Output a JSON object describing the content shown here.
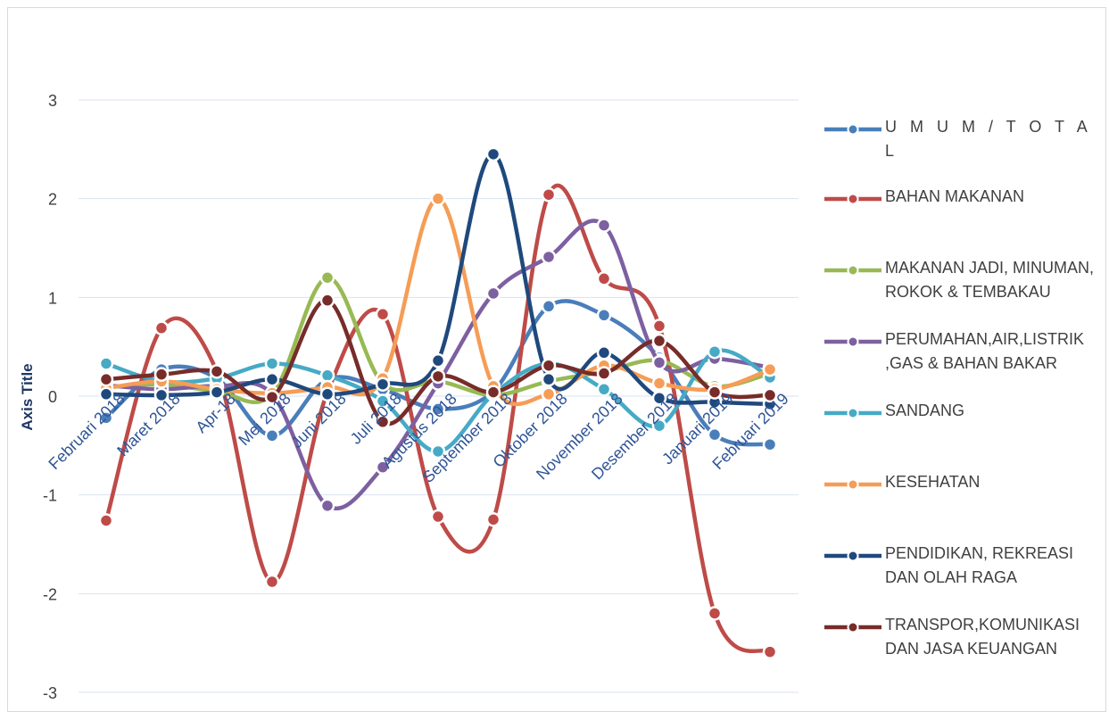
{
  "chart_data": {
    "type": "line",
    "ylabel": "Axis Title",
    "ylim": [
      -3,
      3
    ],
    "y_ticks": [
      "3",
      "2",
      "1",
      "0",
      "-1",
      "-2",
      "-3"
    ],
    "grid": true,
    "legend_position": "right",
    "categories": [
      "Februari 2018",
      "Maret 2018",
      "Apr-18",
      "Mei 2018",
      "Juni 2018",
      "Juli 2018",
      "Agustus 2018",
      "September 2018",
      "Oktober 2018",
      "November 2018",
      "Desember 2018",
      "Januari 2019",
      "Februari 2019"
    ],
    "series": [
      {
        "name": "U M U M / T O T A L",
        "color": "#4a7ebb",
        "values": [
          -0.22,
          0.27,
          0.18,
          -0.4,
          0.17,
          0.07,
          -0.13,
          0.05,
          0.91,
          0.82,
          0.39,
          -0.39,
          -0.49
        ]
      },
      {
        "name": "BAHAN MAKANAN",
        "color": "#be4b48",
        "values": [
          -1.26,
          0.69,
          0.25,
          -1.88,
          0.04,
          0.83,
          -1.22,
          -1.25,
          2.04,
          1.19,
          0.71,
          -2.2,
          -2.59
        ]
      },
      {
        "name": "MAKANAN JADI, MINUMAN, ROKOK & TEMBAKAU",
        "color": "#98b954",
        "values": [
          0.09,
          0.12,
          0.05,
          0.02,
          1.2,
          0.13,
          0.15,
          0.01,
          0.15,
          0.25,
          0.36,
          0.1,
          0.23
        ]
      },
      {
        "name": "PERUMAHAN,AIR,LISTRIK ,GAS & BAHAN BAKAR",
        "color": "#7d60a0",
        "values": [
          0.11,
          0.07,
          0.1,
          0.02,
          -1.11,
          -0.72,
          0.13,
          1.04,
          1.41,
          1.73,
          0.34,
          0.38,
          0.29
        ]
      },
      {
        "name": "SANDANG",
        "color": "#46aac5",
        "values": [
          0.33,
          0.15,
          0.18,
          0.33,
          0.21,
          -0.05,
          -0.56,
          0.02,
          0.33,
          0.07,
          -0.3,
          0.45,
          0.19
        ]
      },
      {
        "name": "KESEHATAN",
        "color": "#f59d56",
        "values": [
          0.08,
          0.15,
          0.07,
          0.03,
          0.09,
          0.18,
          2.0,
          0.1,
          0.02,
          0.31,
          0.13,
          0.07,
          0.27
        ]
      },
      {
        "name": "PENDIDIKAN, REKREASI DAN OLAH RAGA",
        "color": "#1f497d",
        "values": [
          0.02,
          0.01,
          0.04,
          0.17,
          0.02,
          0.12,
          0.36,
          2.45,
          0.17,
          0.44,
          -0.02,
          -0.06,
          -0.08
        ]
      },
      {
        "name": "TRANSPOR,KOMUNIKASI DAN JASA KEUANGAN",
        "color": "#772c2a",
        "values": [
          0.17,
          0.22,
          0.25,
          -0.01,
          0.97,
          -0.26,
          0.2,
          0.04,
          0.31,
          0.23,
          0.56,
          0.04,
          0.01
        ]
      }
    ]
  }
}
